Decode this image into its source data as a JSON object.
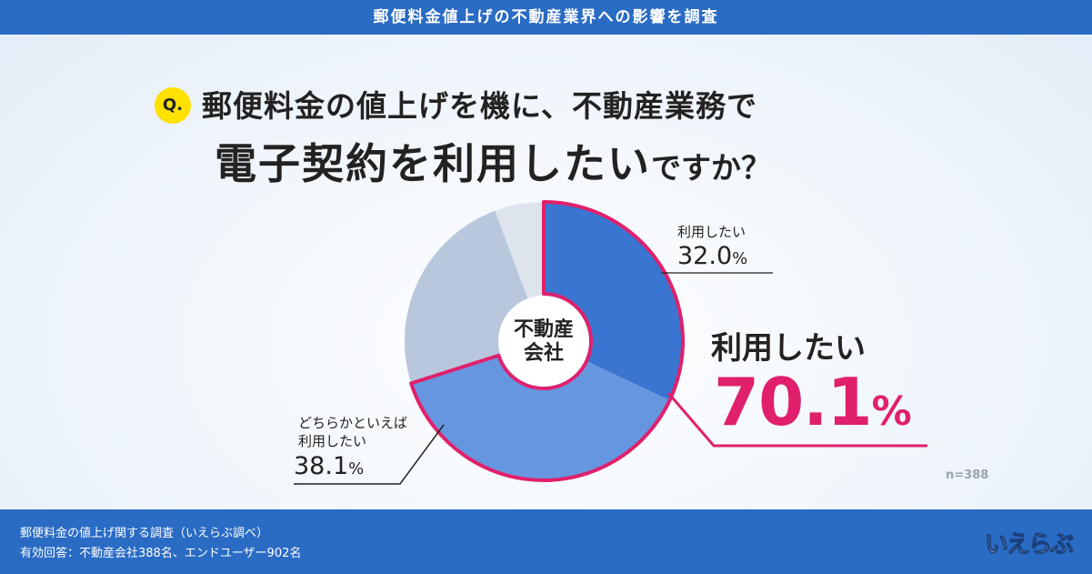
{
  "header": {
    "title": "郵便料金値上げの不動産業界への影響を調査"
  },
  "question": {
    "badge": "Q.",
    "line1": "郵便料金の値上げを機に、不動産業務で",
    "line2_emph": "電子契約を利用したい",
    "line2_rest": "ですか？"
  },
  "chart_data": {
    "type": "pie",
    "center_label": "不動産\n会社",
    "slices": [
      {
        "label": "利用したい",
        "value": 32.0,
        "color": "#3a75d1"
      },
      {
        "label": "どちらかといえば利用したい",
        "value": 38.1,
        "color": "#6796e0"
      },
      {
        "label": "",
        "value": 24.2,
        "color": "#b8c7dc"
      },
      {
        "label": "",
        "value": 5.7,
        "color": "#dde4ee"
      }
    ],
    "labels": {
      "s1_name": "利用したい",
      "s1_value": "32.0",
      "s2_name1": "どちらかといえば",
      "s2_name2": "利用したい",
      "s2_value": "38.1",
      "pct": "%"
    },
    "total": {
      "name": "利用したい",
      "value": "70.1",
      "color": "#e0206c"
    },
    "n": "n=388"
  },
  "footer": {
    "line1": "郵便料金の値上げ関する調査（いえらぶ調べ）",
    "line2": "有効回答：不動産会社388名、エンドユーザー902名",
    "logo": "いえらぶ"
  }
}
